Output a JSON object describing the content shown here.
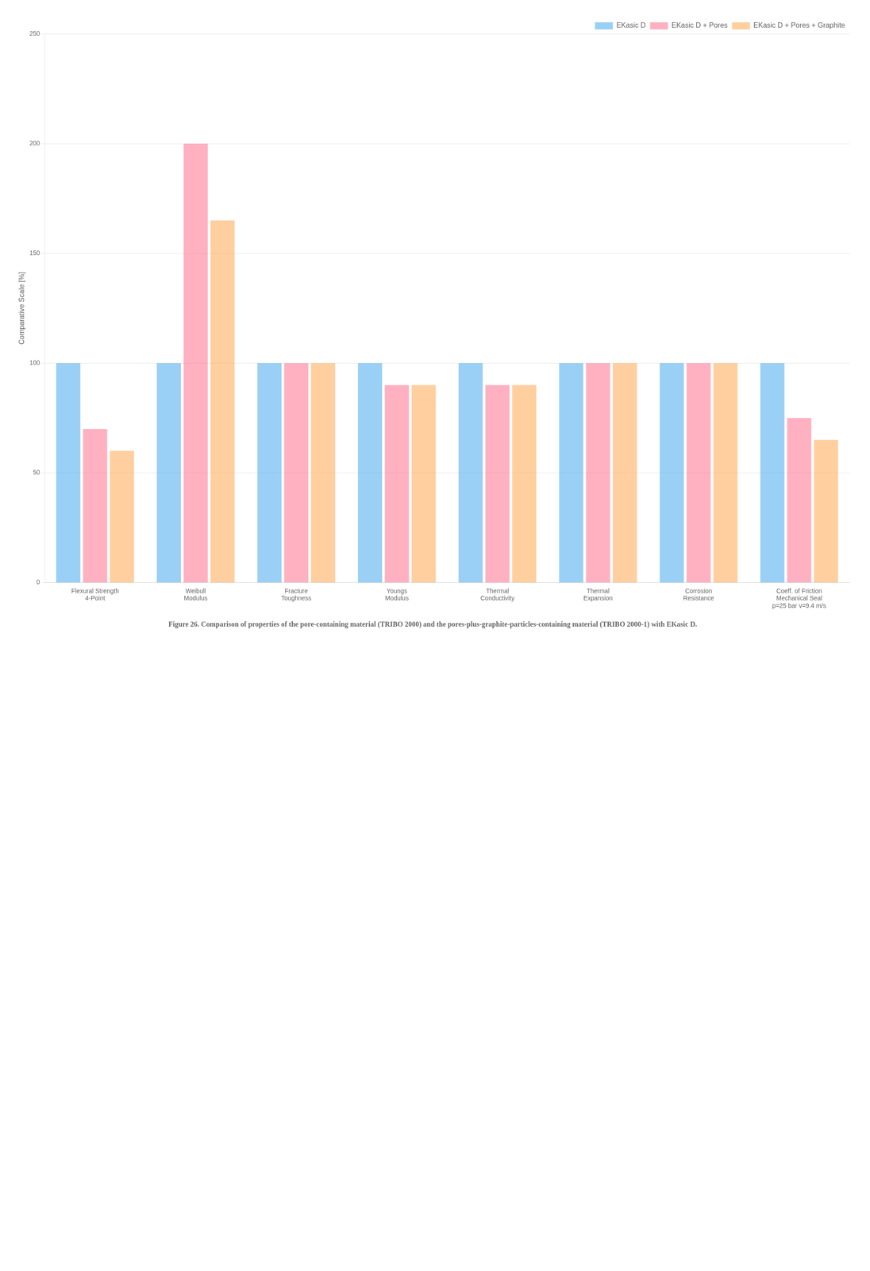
{
  "chart_data": {
    "type": "bar",
    "title": "Figure 26. Comparison of properties of the pore-containing material (TRIBO 2000) and the pores-plus-graphite-particles-containing material (TRIBO 2000-1) with EKasic D.",
    "ylabel": "Comparative Scale [%]",
    "categories": [
      "Flexural Strength\n4-Point",
      "Weibull\nModulus",
      "Fracture\nToughness",
      "Youngs\nModulus",
      "Thermal\nConductivity",
      "Thermal\nExpansion",
      "Corrosion\nResistance",
      "Coeff. of Friction\nMechanical Seal\np=25 bar v=9.4 m/s"
    ],
    "series": [
      {
        "name": "EKasic D",
        "values": [
          100,
          100,
          100,
          100,
          100,
          100,
          100,
          100
        ]
      },
      {
        "name": "EKasic D + Pores",
        "values": [
          70,
          200,
          100,
          90,
          90,
          100,
          100,
          75
        ]
      },
      {
        "name": "EKasic D + Pores + Graphite",
        "values": [
          60,
          165,
          100,
          90,
          90,
          100,
          100,
          65
        ]
      }
    ],
    "ylim": [
      0,
      250
    ],
    "yticks": [
      0,
      50,
      100,
      150,
      200,
      250
    ],
    "grid": true,
    "legend": "upper right"
  }
}
